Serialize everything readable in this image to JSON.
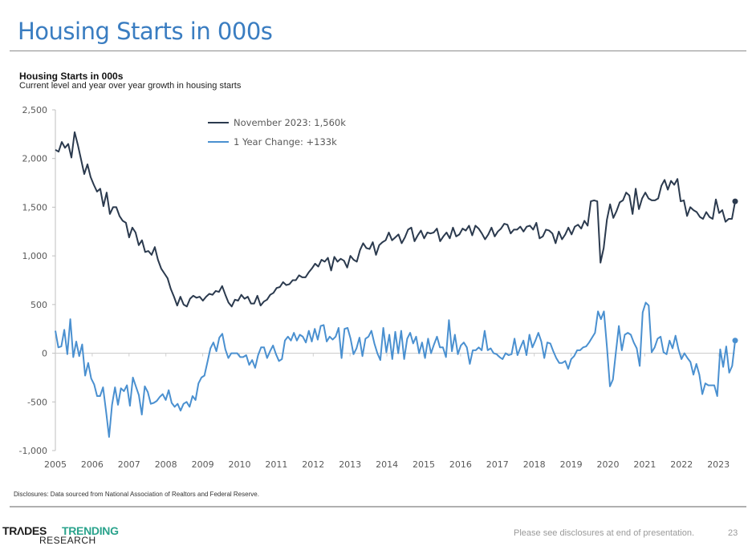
{
  "page": {
    "title": "Housing Starts in 000s",
    "disclosure": "Disclosures: Data sourced from National Association of Realtors and Federal Reserve.",
    "footer_note": "Please see disclosures at end of presentation.",
    "page_number": "23",
    "logo": {
      "word1": "TRΛDES",
      "word2": "TRENDING",
      "word3": "RESEARCH"
    }
  },
  "colors": {
    "level": "#2b3a4e",
    "change": "#4a90d0",
    "axis": "#bfbfbf",
    "title": "#3a7dc1",
    "brand_green": "#2aa38c"
  },
  "chart_data": {
    "type": "line",
    "title": "Housing Starts in 000s",
    "subtitle": "Current level and year over year growth in housing starts",
    "xlabel": "",
    "ylabel": "",
    "ylim": [
      -1000,
      2500
    ],
    "yticks": [
      2500,
      2000,
      1500,
      1000,
      500,
      0,
      -500,
      -1000
    ],
    "ytick_labels": [
      "2,500",
      "2,000",
      "1,500",
      "1,000",
      "500",
      "0",
      "-500",
      "-1,000"
    ],
    "x_start": 2005.0,
    "x_end": 2023.45,
    "xtick_labels": [
      "2005",
      "2006",
      "2007",
      "2008",
      "2009",
      "2010",
      "2011",
      "2012",
      "2013",
      "2014",
      "2015",
      "2016",
      "2017",
      "2018",
      "2019",
      "2020",
      "2021",
      "2022",
      "2023"
    ],
    "legend_position": "top-center",
    "grid": false,
    "series": [
      {
        "name": "November 2023:  1,560k",
        "values": [
          2090,
          2070,
          2170,
          2110,
          2150,
          2010,
          2270,
          2140,
          1990,
          1840,
          1940,
          1810,
          1730,
          1660,
          1690,
          1510,
          1650,
          1430,
          1500,
          1500,
          1410,
          1360,
          1340,
          1190,
          1290,
          1240,
          1110,
          1160,
          1040,
          1050,
          1010,
          1090,
          960,
          870,
          820,
          770,
          660,
          580,
          490,
          580,
          500,
          480,
          560,
          590,
          570,
          580,
          540,
          580,
          610,
          600,
          640,
          630,
          690,
          600,
          520,
          480,
          550,
          540,
          600,
          560,
          580,
          510,
          510,
          590,
          490,
          530,
          550,
          600,
          620,
          670,
          680,
          730,
          700,
          710,
          750,
          750,
          800,
          780,
          780,
          830,
          870,
          920,
          890,
          960,
          940,
          980,
          850,
          990,
          940,
          970,
          950,
          880,
          1000,
          960,
          940,
          1060,
          1130,
          1080,
          1070,
          1140,
          1010,
          1110,
          1140,
          1160,
          1240,
          1160,
          1190,
          1220,
          1130,
          1190,
          1270,
          1290,
          1150,
          1210,
          1260,
          1180,
          1240,
          1230,
          1240,
          1280,
          1150,
          1200,
          1240,
          1180,
          1290,
          1200,
          1220,
          1280,
          1260,
          1310,
          1210,
          1310,
          1280,
          1230,
          1170,
          1220,
          1290,
          1200,
          1250,
          1280,
          1330,
          1320,
          1230,
          1270,
          1270,
          1300,
          1250,
          1300,
          1310,
          1270,
          1340,
          1180,
          1200,
          1270,
          1260,
          1230,
          1130,
          1250,
          1170,
          1220,
          1290,
          1220,
          1300,
          1320,
          1280,
          1360,
          1310,
          1560,
          1570,
          1560,
          930,
          1080,
          1370,
          1530,
          1390,
          1460,
          1550,
          1570,
          1650,
          1620,
          1430,
          1690,
          1480,
          1590,
          1650,
          1590,
          1570,
          1570,
          1590,
          1720,
          1780,
          1680,
          1770,
          1730,
          1790,
          1560,
          1570,
          1410,
          1500,
          1470,
          1450,
          1400,
          1380,
          1450,
          1400,
          1380,
          1580,
          1440,
          1470,
          1350,
          1380,
          1380,
          1560
        ]
      },
      {
        "name": "1 Year Change:  +133k",
        "values": [
          230,
          60,
          70,
          240,
          -10,
          350,
          -40,
          120,
          -30,
          90,
          -230,
          -100,
          -260,
          -320,
          -440,
          -440,
          -350,
          -600,
          -860,
          -530,
          -350,
          -530,
          -360,
          -390,
          -330,
          -540,
          -250,
          -340,
          -430,
          -630,
          -340,
          -400,
          -520,
          -510,
          -490,
          -450,
          -420,
          -480,
          -380,
          -510,
          -550,
          -520,
          -590,
          -520,
          -500,
          -550,
          -440,
          -480,
          -310,
          -250,
          -230,
          -90,
          50,
          110,
          20,
          160,
          200,
          40,
          -50,
          0,
          0,
          0,
          -40,
          -40,
          -20,
          -120,
          -70,
          -150,
          -20,
          60,
          60,
          -50,
          20,
          80,
          -10,
          -80,
          -60,
          130,
          170,
          130,
          210,
          130,
          190,
          170,
          110,
          230,
          120,
          250,
          140,
          280,
          290,
          120,
          170,
          140,
          170,
          260,
          -50,
          250,
          260,
          150,
          -10,
          50,
          160,
          -30,
          150,
          170,
          230,
          100,
          0,
          -70,
          260,
          10,
          190,
          -60,
          220,
          0,
          230,
          -60,
          150,
          210,
          100,
          170,
          0,
          110,
          -50,
          150,
          0,
          90,
          170,
          60,
          60,
          -40,
          340,
          20,
          190,
          -10,
          80,
          110,
          60,
          -110,
          30,
          30,
          60,
          30,
          230,
          30,
          50,
          0,
          -10,
          -40,
          -60,
          0,
          -20,
          -10,
          150,
          -20,
          60,
          130,
          -20,
          190,
          60,
          130,
          210,
          120,
          -50,
          110,
          100,
          20,
          -50,
          -100,
          -100,
          -80,
          -160,
          -60,
          -30,
          30,
          30,
          60,
          70,
          110,
          160,
          210,
          430,
          350,
          430,
          60,
          -340,
          -270,
          10,
          280,
          30,
          190,
          210,
          190,
          110,
          50,
          -130,
          420,
          520,
          490,
          10,
          60,
          150,
          170,
          10,
          -10,
          130,
          50,
          180,
          40,
          -60,
          0,
          -50,
          -90,
          -220,
          -110,
          -220,
          -420,
          -310,
          -330,
          -330,
          -330,
          -440,
          40,
          -140,
          70,
          -200,
          -130,
          130
        ]
      }
    ]
  }
}
